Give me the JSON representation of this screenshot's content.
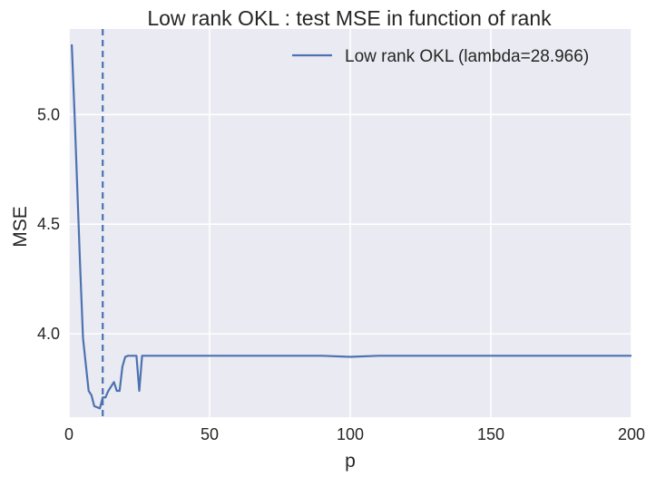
{
  "chart_data": {
    "type": "line",
    "title": "Low rank OKL : test MSE in function of rank",
    "xlabel": "p",
    "ylabel": "MSE",
    "xlim": [
      0,
      200
    ],
    "ylim": [
      3.62,
      5.39
    ],
    "x_ticks": [
      0,
      50,
      100,
      150,
      200
    ],
    "x_tick_labels": [
      "0",
      "50",
      "100",
      "150",
      "200"
    ],
    "y_ticks": [
      4.0,
      4.5,
      5.0
    ],
    "y_tick_labels": [
      "4.0",
      "4.5",
      "5.0"
    ],
    "grid": true,
    "background_color": "#eaeaf2",
    "grid_color": "#ffffff",
    "legend_position": "top-right",
    "vline": {
      "x": 12,
      "style": "dashed",
      "color": "#4c72b0"
    },
    "series": [
      {
        "name": "Low rank OKL (lambda=28.966)",
        "color": "#4c72b0",
        "x": [
          1,
          2,
          3,
          4,
          5,
          6,
          7,
          8,
          9,
          10,
          11,
          12,
          13,
          14,
          15,
          16,
          17,
          18,
          19,
          20,
          21,
          22,
          23,
          24,
          25,
          26,
          27,
          28,
          30,
          40,
          50,
          60,
          70,
          80,
          90,
          100,
          110,
          120,
          130,
          140,
          150,
          160,
          170,
          180,
          190,
          200
        ],
        "y": [
          5.32,
          5.0,
          4.65,
          4.3,
          3.98,
          3.86,
          3.74,
          3.72,
          3.67,
          3.665,
          3.66,
          3.71,
          3.71,
          3.74,
          3.76,
          3.78,
          3.74,
          3.74,
          3.85,
          3.895,
          3.9,
          3.9,
          3.9,
          3.9,
          3.74,
          3.9,
          3.9,
          3.9,
          3.9,
          3.9,
          3.9,
          3.9,
          3.9,
          3.9,
          3.9,
          3.895,
          3.9,
          3.9,
          3.9,
          3.9,
          3.9,
          3.9,
          3.9,
          3.9,
          3.9,
          3.9
        ]
      }
    ]
  }
}
